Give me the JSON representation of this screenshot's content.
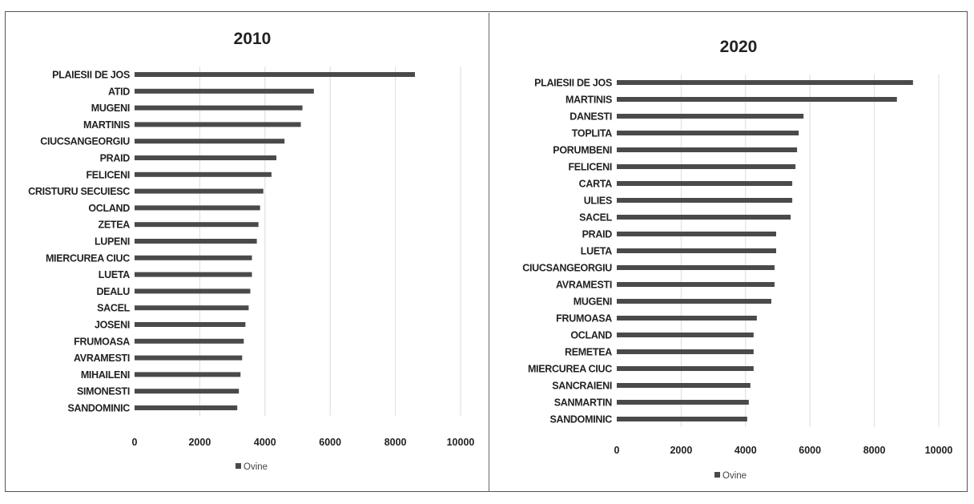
{
  "chart_data": [
    {
      "type": "bar",
      "orientation": "horizontal",
      "title": "2010",
      "categories": [
        "PLAIESII DE JOS",
        "ATID",
        "MUGENI",
        "MARTINIS",
        "CIUCSANGEORGIU",
        "PRAID",
        "FELICENI",
        "CRISTURU SECUIESC",
        "OCLAND",
        "ZETEA",
        "LUPENI",
        "MIERCUREA CIUC",
        "LUETA",
        "DEALU",
        "SACEL",
        "JOSENI",
        "FRUMOASA",
        "AVRAMESTI",
        "MIHAILENI",
        "SIMONESTI",
        "SANDOMINIC"
      ],
      "values": [
        8600,
        5500,
        5150,
        5100,
        4600,
        4350,
        4200,
        3950,
        3850,
        3800,
        3750,
        3600,
        3600,
        3550,
        3500,
        3400,
        3350,
        3300,
        3250,
        3200,
        3150
      ],
      "xlim": [
        0,
        10000
      ],
      "xticks": [
        0,
        2000,
        4000,
        6000,
        8000,
        10000
      ],
      "series": [
        {
          "name": "Ovine"
        }
      ],
      "legend": "bottom",
      "grid": true,
      "color": "#4a4a4a"
    },
    {
      "type": "bar",
      "orientation": "horizontal",
      "title": "2020",
      "categories": [
        "PLAIESII DE JOS",
        "MARTINIS",
        "DANESTI",
        "TOPLITA",
        "PORUMBENI",
        "FELICENI",
        "CARTA",
        "ULIES",
        "SACEL",
        "PRAID",
        "LUETA",
        "CIUCSANGEORGIU",
        "AVRAMESTI",
        "MUGENI",
        "FRUMOASA",
        "OCLAND",
        "REMETEA",
        "MIERCUREA CIUC",
        "SANCRAIENI",
        "SANMARTIN",
        "SANDOMINIC"
      ],
      "values": [
        9200,
        8700,
        5800,
        5650,
        5600,
        5550,
        5450,
        5450,
        5400,
        4950,
        4950,
        4900,
        4900,
        4800,
        4350,
        4250,
        4250,
        4250,
        4150,
        4100,
        4050
      ],
      "xlim": [
        0,
        10000
      ],
      "xticks": [
        0,
        2000,
        4000,
        6000,
        8000,
        10000
      ],
      "series": [
        {
          "name": "Ovine"
        }
      ],
      "legend": "bottom",
      "grid": true,
      "color": "#4a4a4a"
    }
  ]
}
